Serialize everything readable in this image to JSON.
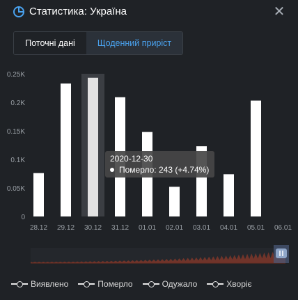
{
  "header": {
    "title": "Статистика: Україна",
    "close_symbol": "✕"
  },
  "tabs": [
    {
      "label": "Поточні дані"
    },
    {
      "label": "Щоденний приріст"
    }
  ],
  "tooltip": {
    "date": "2020-12-30",
    "text": "Померло: 243 (+4.74%)"
  },
  "legend": [
    {
      "label": "Виявлено"
    },
    {
      "label": "Померло"
    },
    {
      "label": "Одужало"
    },
    {
      "label": "Хворіє"
    }
  ],
  "colors": {
    "background": "#1f2226",
    "bar": "#ffffff",
    "highlight": "#e2e2e2",
    "accent": "#4aa3f0",
    "navigator": "#8a3a2a"
  },
  "chart_data": {
    "type": "bar",
    "categories": [
      "28.12",
      "29.12",
      "30.12",
      "31.12",
      "01.01",
      "02.01",
      "03.01",
      "04.01",
      "05.01",
      "06.01"
    ],
    "series": [
      {
        "name": "Померло",
        "values": [
          76,
          233,
          243,
          209,
          148,
          52,
          123,
          74,
          203,
          0
        ]
      }
    ],
    "y_tick_labels": [
      "0",
      "0.05K",
      "0.1K",
      "0.15K",
      "0.2K",
      "0.25K"
    ],
    "ylim": [
      0,
      250
    ],
    "highlighted_category": "30.12",
    "grid": false,
    "legend_position": "bottom"
  }
}
